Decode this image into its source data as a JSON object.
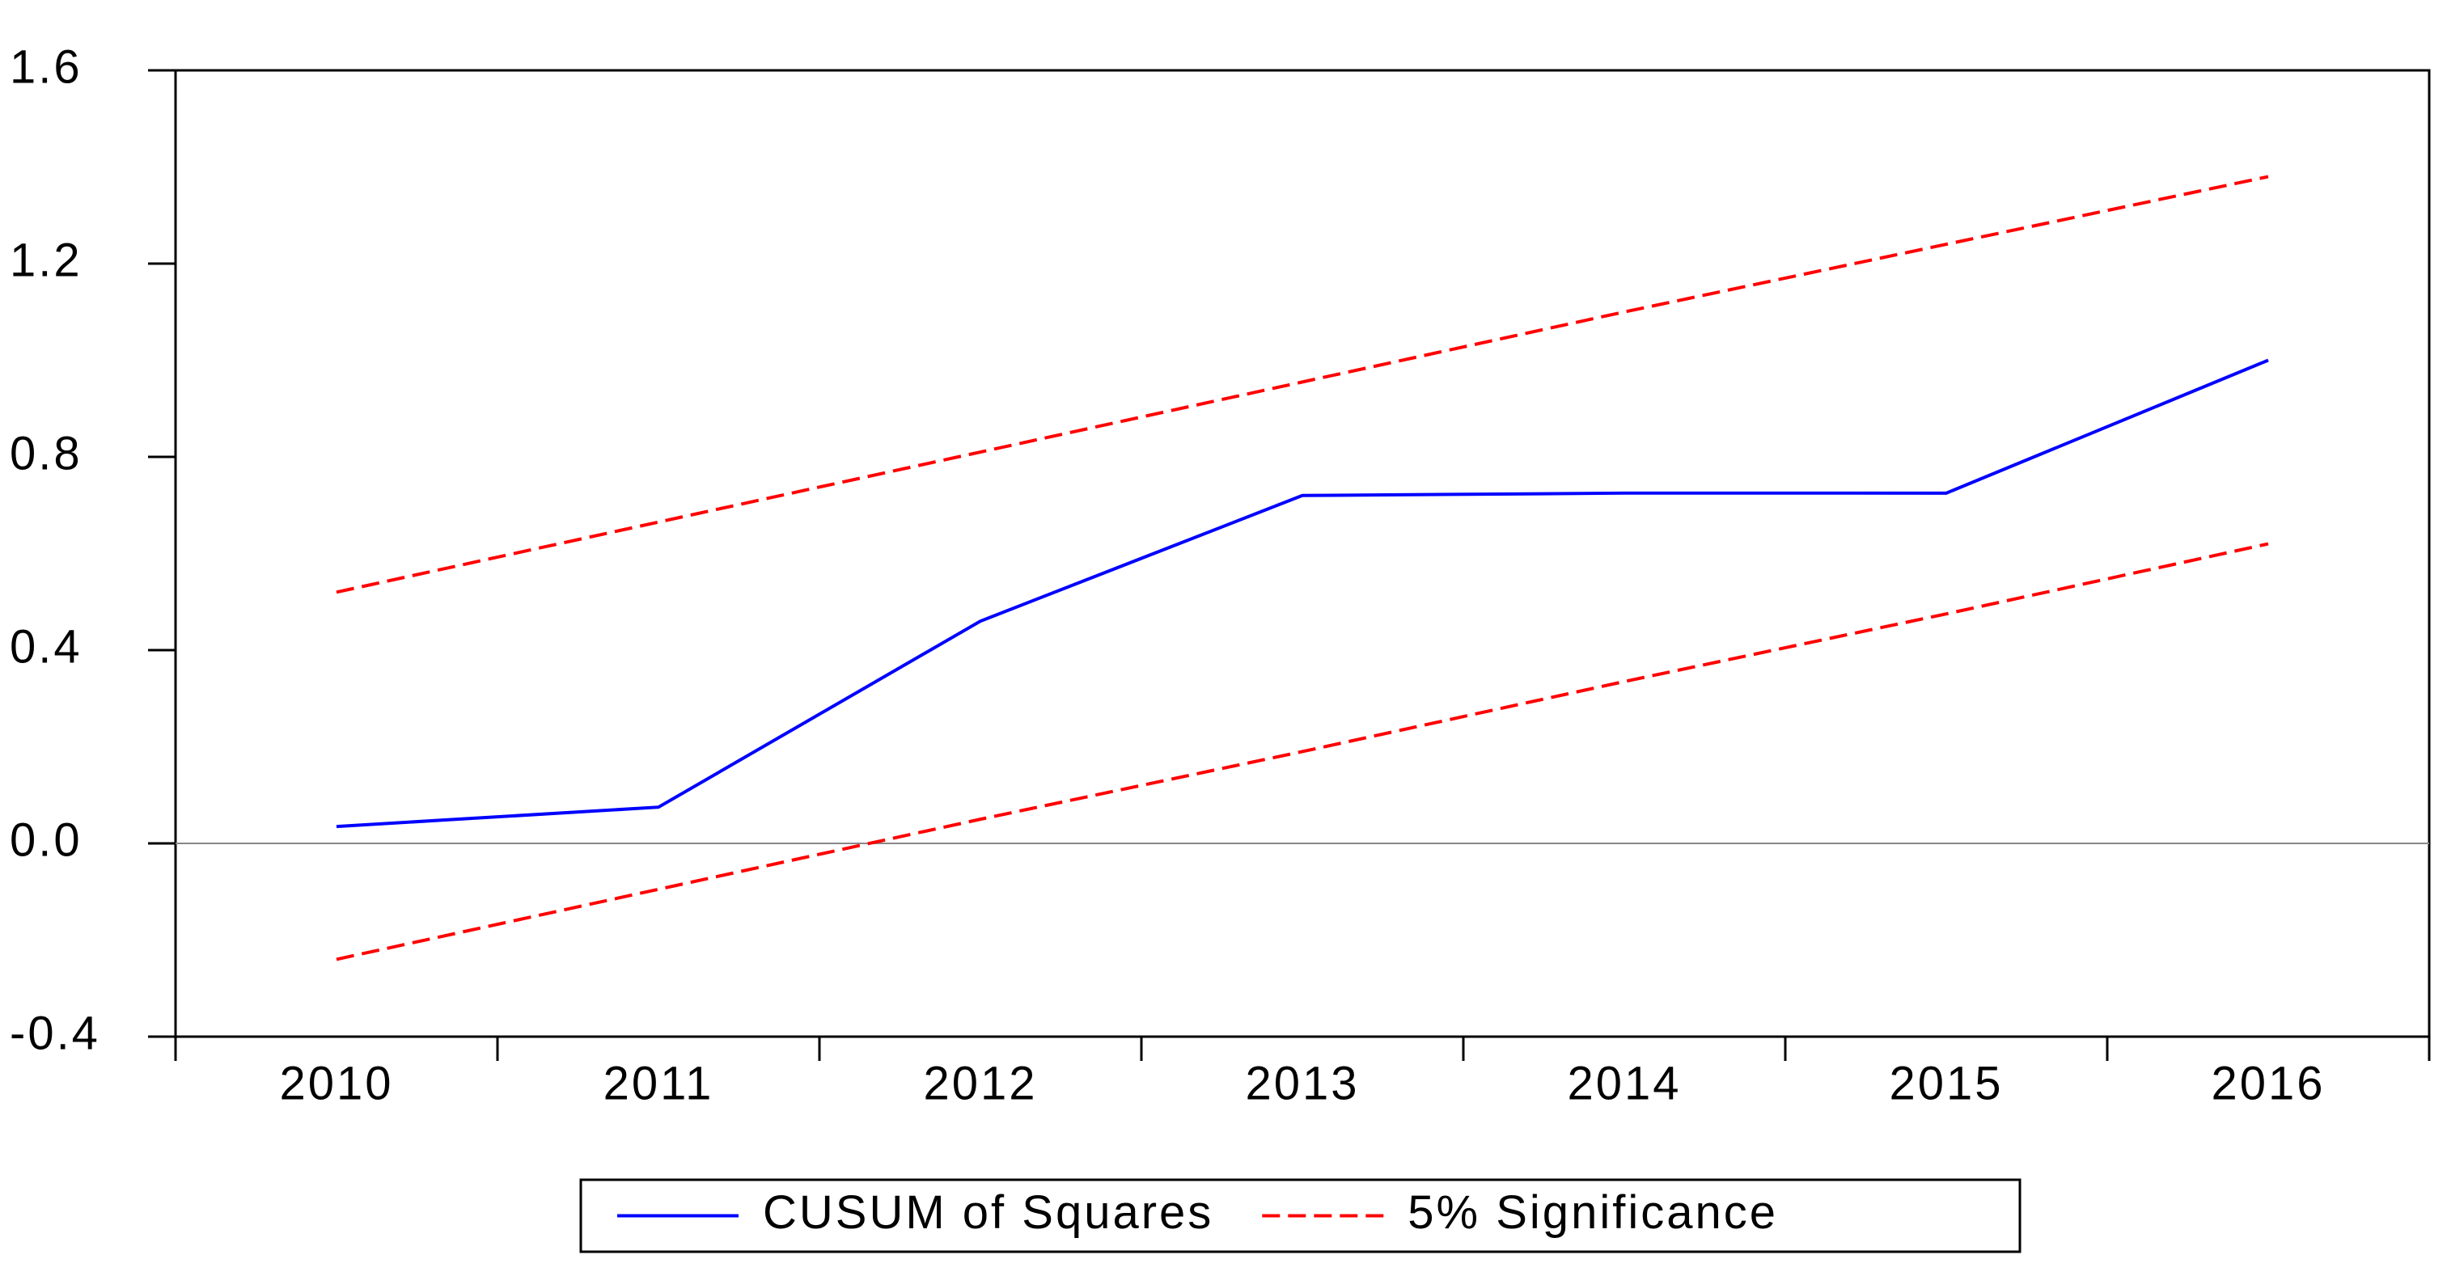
{
  "chart_data": {
    "type": "line",
    "categories": [
      "2010",
      "2011",
      "2012",
      "2013",
      "2014",
      "2015",
      "2016"
    ],
    "series": [
      {
        "name": "CUSUM of Squares",
        "color": "#0000ff",
        "dashed": false,
        "values": [
          0.035,
          0.075,
          0.46,
          0.72,
          0.725,
          0.725,
          1.0
        ]
      },
      {
        "name": "5% Significance",
        "color": "#ff0000",
        "dashed": true,
        "values": [
          0.52,
          0.665,
          0.81,
          0.955,
          1.1,
          1.24,
          1.38
        ]
      },
      {
        "color": "#ff0000",
        "dashed": true,
        "values": [
          -0.24,
          -0.095,
          0.05,
          0.19,
          0.335,
          0.475,
          0.62
        ]
      }
    ],
    "ylim": [
      -0.4,
      1.6
    ],
    "yticks": [
      -0.4,
      {
        "value": 0,
        "label": "0.0"
      },
      0.4,
      0.8,
      1.2,
      1.6
    ],
    "zero_line": true,
    "grid": false,
    "legend": "bottom"
  }
}
